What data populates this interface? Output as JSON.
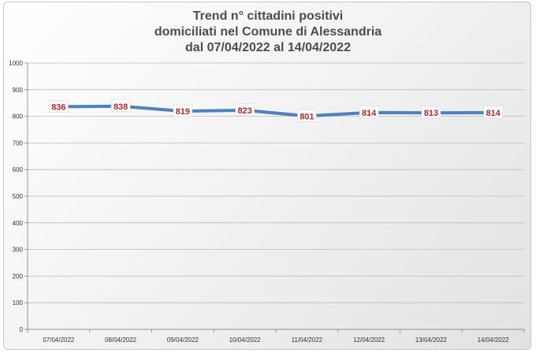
{
  "chart_data": {
    "type": "line",
    "title_lines": [
      "Trend n° cittadini positivi",
      "domiciliati nel Comune di Alessandria",
      "dal 07/04/2022 al 14/04/2022"
    ],
    "categories": [
      "07/04/2022",
      "08/04/2022",
      "09/04/2022",
      "10/04/2022",
      "11/04/2022",
      "12/04/2022",
      "13/04/2022",
      "14/04/2022"
    ],
    "series": [
      {
        "values": [
          836,
          838,
          819,
          823,
          801,
          814,
          813,
          814
        ],
        "color": "#4f81bd"
      }
    ],
    "ylim": [
      0,
      1000
    ],
    "yticks": [
      0,
      100,
      200,
      300,
      400,
      500,
      600,
      700,
      800,
      900,
      1000
    ],
    "grid": true,
    "legend": "none",
    "data_labels": true,
    "data_label_color": "#b3262b"
  }
}
